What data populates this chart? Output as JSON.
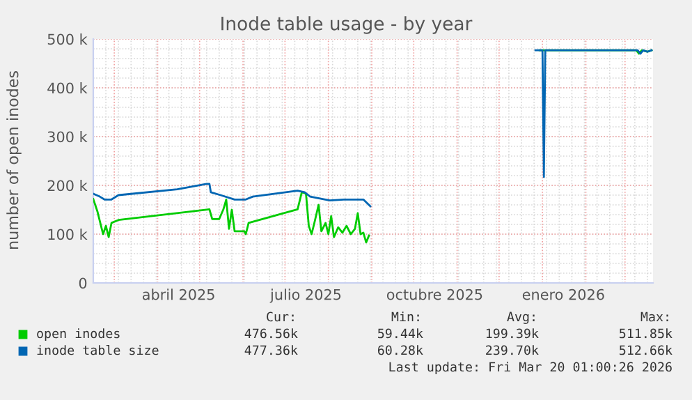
{
  "chart_data": {
    "type": "line",
    "title": "Inode table usage - by year",
    "ylabel": "number of open inodes",
    "xlim": [
      "2025-02-14",
      "2026-03-21"
    ],
    "xticks": [
      {
        "value": "2025-04-16",
        "label": "abril 2025"
      },
      {
        "value": "2025-07-16",
        "label": "julio 2025"
      },
      {
        "value": "2025-10-16",
        "label": "octubre 2025"
      },
      {
        "value": "2026-01-16",
        "label": "enero 2026"
      }
    ],
    "ylim": [
      0,
      500000
    ],
    "yticks": [
      0,
      {
        "value": 100000,
        "label": "100 k"
      },
      {
        "value": 200000,
        "label": "200 k"
      },
      {
        "value": 300000,
        "label": "300 k"
      },
      {
        "value": 400000,
        "label": "400 k"
      },
      {
        "value": 500000,
        "label": "500 k"
      }
    ],
    "grid": true,
    "legend": "bottom",
    "marker": "none",
    "line_style": "solid",
    "series": [
      {
        "name": "open inodes",
        "color": "#00cc00",
        "x": [
          "2025-02-14",
          "2025-02-17",
          "2025-02-19",
          "2025-02-21",
          "2025-02-23",
          "2025-02-25",
          "2025-02-27",
          "2025-03-04",
          "2025-05-08",
          "2025-05-10",
          "2025-05-15",
          "2025-05-18",
          "2025-05-20",
          "2025-05-22",
          "2025-05-24",
          "2025-05-26",
          "2025-06-02",
          "2025-06-03",
          "2025-06-05",
          "2025-07-10",
          "2025-07-13",
          "2025-07-16",
          "2025-07-18",
          "2025-07-20",
          "2025-07-22",
          "2025-07-25",
          "2025-07-27",
          "2025-07-30",
          "2025-08-01",
          "2025-08-03",
          "2025-08-05",
          "2025-08-08",
          "2025-08-11",
          "2025-08-14",
          "2025-08-17",
          "2025-08-20",
          "2025-08-22",
          "2025-08-24",
          "2025-08-26",
          "2025-08-28",
          "2025-08-30",
          "2025-08-31",
          "2025-09-01",
          "2025-09-02",
          "2025-12-27",
          "2025-12-29",
          "2025-12-30",
          "2026-01-15",
          "2026-02-10",
          "2026-03-09",
          "2026-03-11",
          "2026-03-13",
          "2026-03-17",
          "2026-03-20"
        ],
        "values": [
          172000,
          146000,
          123000,
          100000,
          117000,
          94000,
          123000,
          129000,
          151000,
          131000,
          131000,
          151000,
          171000,
          111000,
          150000,
          106000,
          106000,
          100000,
          123000,
          151000,
          186000,
          183000,
          117000,
          100000,
          123000,
          160000,
          106000,
          123000,
          100000,
          137000,
          94000,
          114000,
          103000,
          117000,
          100000,
          111000,
          143000,
          100000,
          103000,
          83000,
          97000,
          null,
          null,
          null,
          null,
          null,
          477000,
          477000,
          477000,
          477000,
          470000,
          477000,
          474000,
          477000
        ]
      },
      {
        "name": "inode table size",
        "color": "#0066b3",
        "x": [
          "2025-02-14",
          "2025-02-18",
          "2025-02-22",
          "2025-02-27",
          "2025-03-04",
          "2025-04-15",
          "2025-05-06",
          "2025-05-08",
          "2025-05-09",
          "2025-05-16",
          "2025-05-26",
          "2025-06-03",
          "2025-06-08",
          "2025-07-10",
          "2025-07-15",
          "2025-07-19",
          "2025-08-02",
          "2025-08-12",
          "2025-08-26",
          "2025-08-31",
          "2025-09-01",
          "2025-12-26",
          "2025-12-27",
          "2026-01-01",
          "2026-01-02",
          "2026-01-03",
          "2026-01-04",
          "2026-02-10",
          "2026-03-10",
          "2026-03-12",
          "2026-03-14",
          "2026-03-17",
          "2026-03-20"
        ],
        "values": [
          183000,
          178000,
          171000,
          171000,
          180000,
          192000,
          203000,
          203000,
          186000,
          180000,
          171000,
          171000,
          177000,
          189000,
          186000,
          177000,
          169000,
          171000,
          171000,
          157000,
          null,
          null,
          477000,
          477000,
          217000,
          477000,
          477000,
          477000,
          477000,
          470000,
          477000,
          474000,
          477000
        ]
      }
    ],
    "annotations": [
      "Cur:",
      "Min:",
      "Avg:",
      "Max:",
      "476.56k",
      "59.44k",
      "199.39k",
      "511.85k",
      "477.36k",
      "60.28k",
      "239.70k",
      "512.66k",
      "Last update: Fri Mar 20 01:00:26 2026"
    ]
  }
}
